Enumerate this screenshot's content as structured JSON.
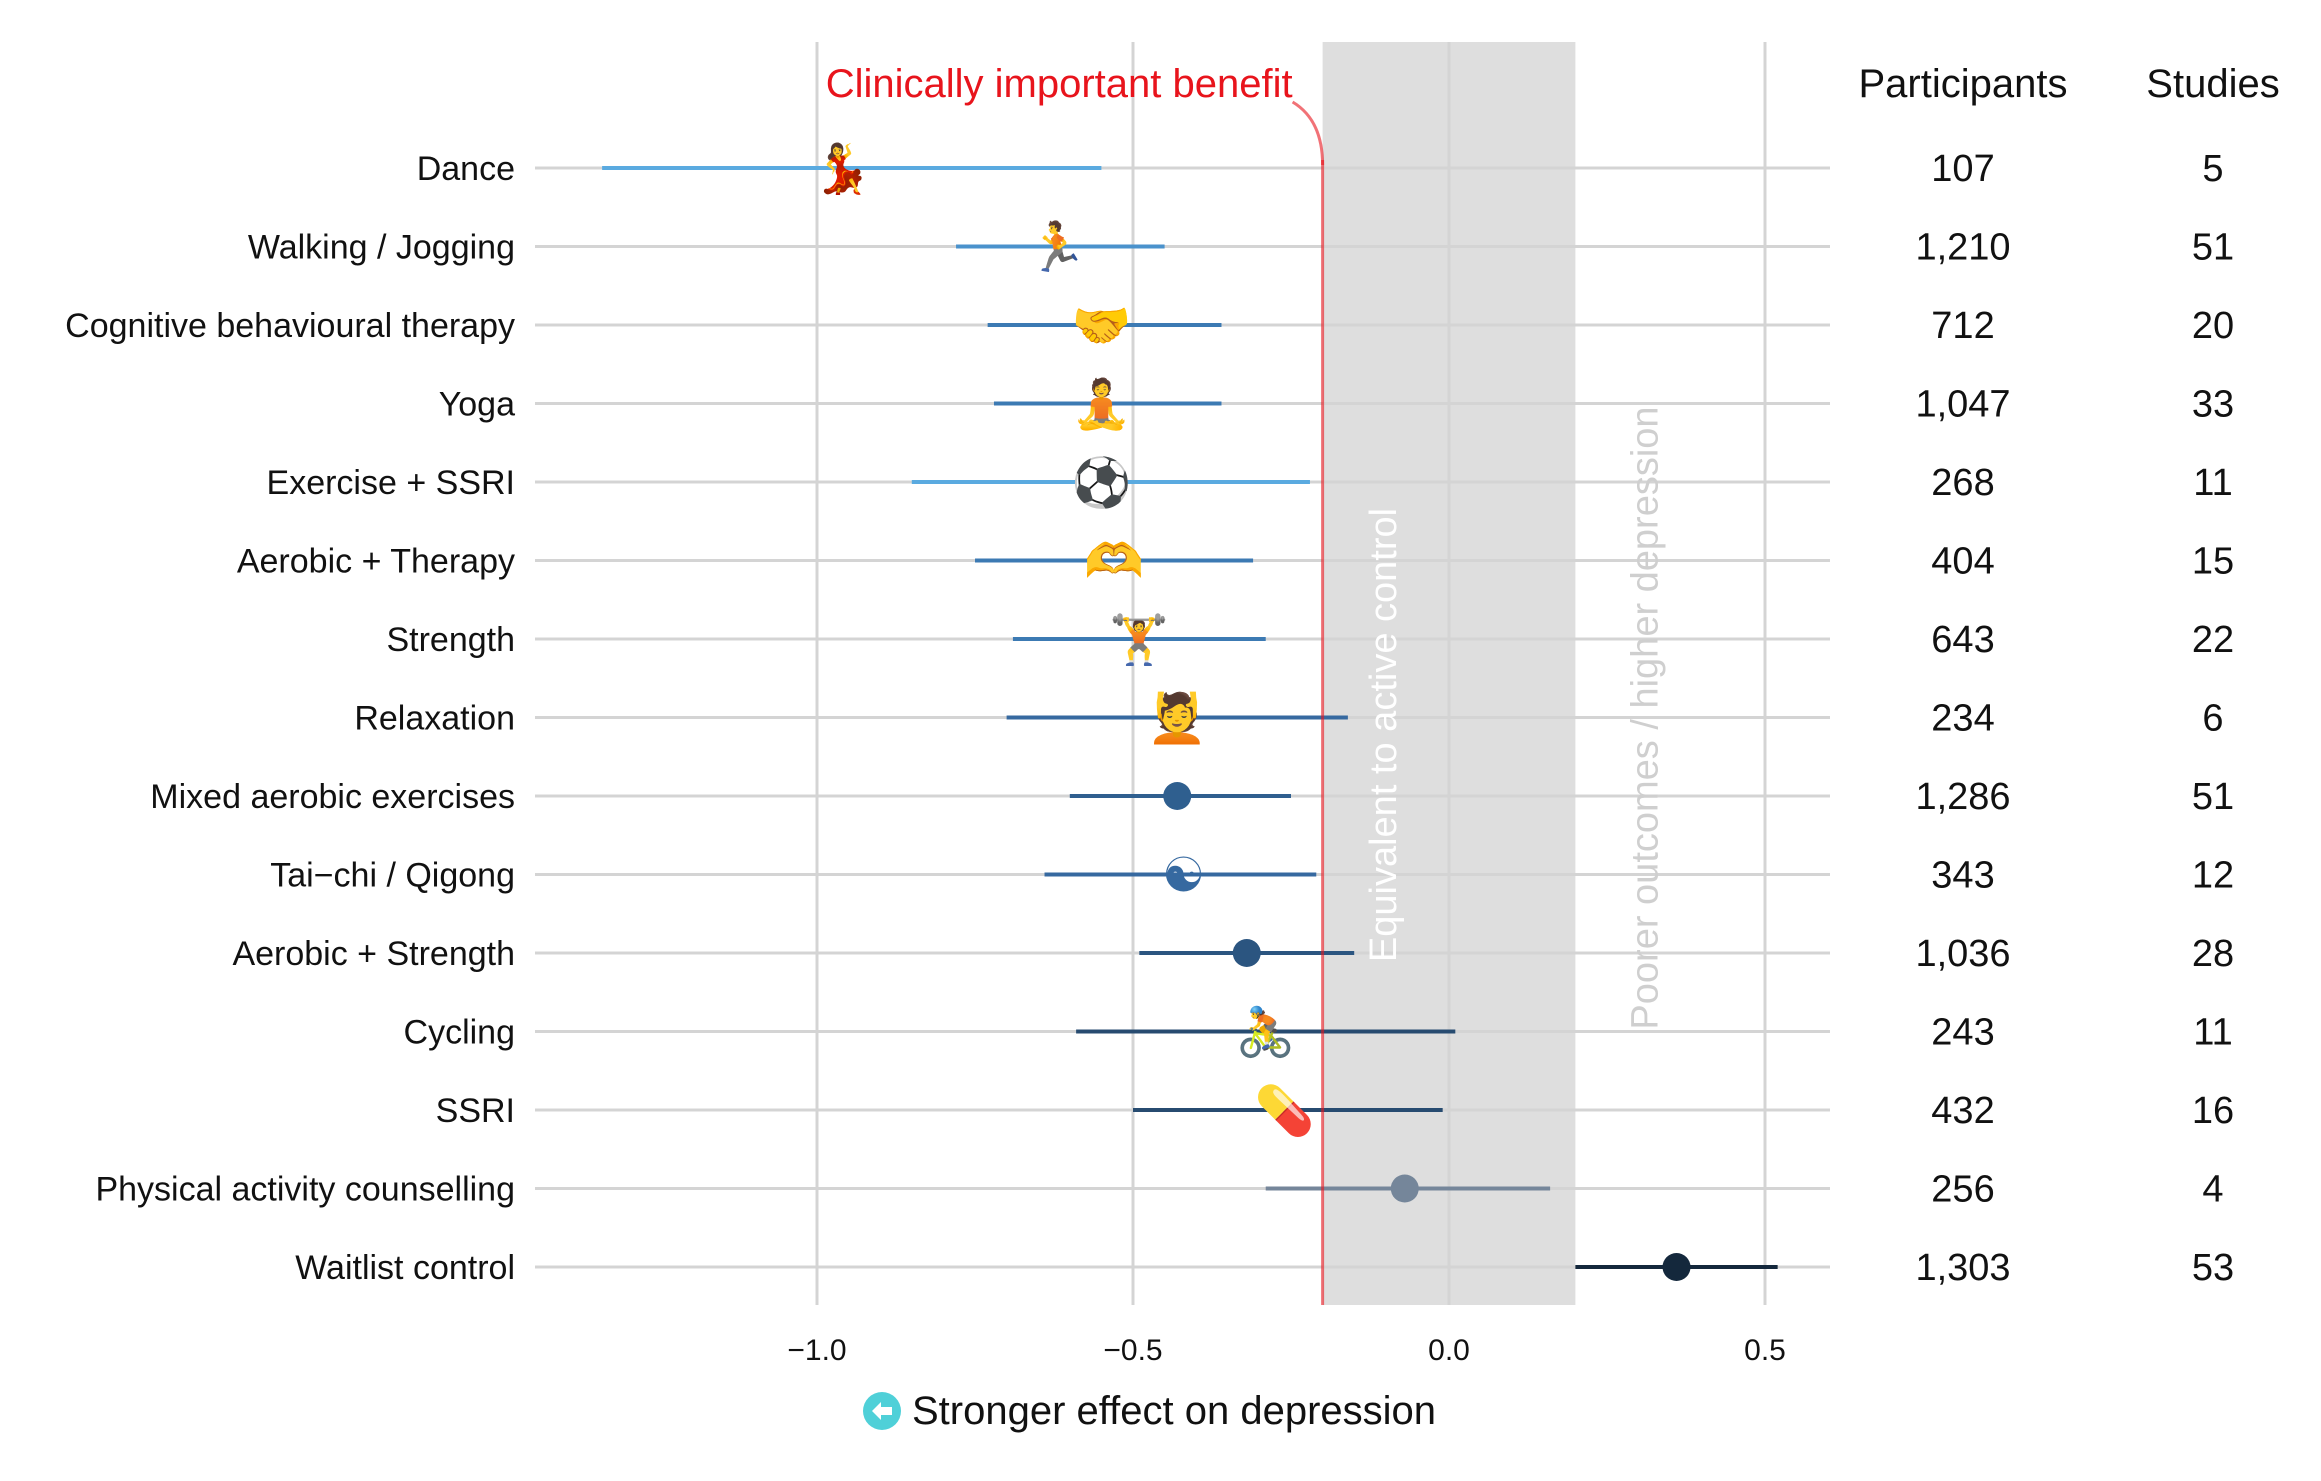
{
  "chart_data": {
    "type": "forest",
    "xaxis": {
      "xlim": [
        -1.4,
        0.6
      ],
      "ticks": [
        -1.0,
        -0.5,
        0.0,
        0.5
      ],
      "tick_labels": [
        "−1.0",
        "−0.5",
        "0.0",
        "0.5"
      ],
      "xlabel": "Stronger effect on depression",
      "xlabel_icon": "left-arrow-circle-icon"
    },
    "columns": {
      "participants": "Participants",
      "studies": "Studies"
    },
    "annotations": {
      "mcid_label": "Clinically important benefit",
      "mcid_value": -0.2,
      "equivalence_band": [
        -0.2,
        0.2
      ],
      "equivalence_label": "Equivalent to active control",
      "poorer_label": "Poorer outcomes / higher depression"
    },
    "colors": {
      "mcid": "#e8141c",
      "band": "#dedede",
      "grid": "#d4d4d4",
      "arrow_icon": "#4fd0d8"
    },
    "rows": [
      {
        "label": "Dance",
        "estimate": -0.96,
        "lower": -1.34,
        "upper": -0.55,
        "participants": "107",
        "studies": "5",
        "marker": "dance-icon",
        "glyph": "💃",
        "color": "#5aaae0"
      },
      {
        "label": "Walking / Jogging",
        "estimate": -0.62,
        "lower": -0.78,
        "upper": -0.45,
        "participants": "1,210",
        "studies": "51",
        "marker": "runner-icon",
        "glyph": "🏃",
        "color": "#4a92cc"
      },
      {
        "label": "Cognitive behavioural therapy",
        "estimate": -0.55,
        "lower": -0.73,
        "upper": -0.36,
        "participants": "712",
        "studies": "20",
        "marker": "handshake-icon",
        "glyph": "🤝",
        "color": "#3c7ab3"
      },
      {
        "label": "Yoga",
        "estimate": -0.55,
        "lower": -0.72,
        "upper": -0.36,
        "participants": "1,047",
        "studies": "33",
        "marker": "yoga-icon",
        "glyph": "🧘",
        "color": "#3c7ab3"
      },
      {
        "label": "Exercise + SSRI",
        "estimate": -0.55,
        "lower": -0.85,
        "upper": -0.22,
        "participants": "268",
        "studies": "11",
        "marker": "ball-and-pill-icon",
        "glyph": "⚽",
        "color": "#5aaae0"
      },
      {
        "label": "Aerobic + Therapy",
        "estimate": -0.53,
        "lower": -0.75,
        "upper": -0.31,
        "participants": "404",
        "studies": "15",
        "marker": "heart-hands-icon",
        "glyph": "🫶",
        "color": "#3c7ab3"
      },
      {
        "label": "Strength",
        "estimate": -0.49,
        "lower": -0.69,
        "upper": -0.29,
        "participants": "643",
        "studies": "22",
        "marker": "weightlifter-icon",
        "glyph": "🏋",
        "color": "#3c7ab3"
      },
      {
        "label": "Relaxation",
        "estimate": -0.43,
        "lower": -0.7,
        "upper": -0.16,
        "participants": "234",
        "studies": "6",
        "marker": "massage-icon",
        "glyph": "💆",
        "color": "#3669a0"
      },
      {
        "label": "Mixed aerobic exercises",
        "estimate": -0.43,
        "lower": -0.6,
        "upper": -0.25,
        "participants": "1,286",
        "studies": "51",
        "marker": "dot",
        "glyph": "",
        "color": "#2f5f8f"
      },
      {
        "label": "Tai−chi / Qigong",
        "estimate": -0.42,
        "lower": -0.64,
        "upper": -0.21,
        "participants": "343",
        "studies": "12",
        "marker": "yin-yang-icon",
        "glyph": "☯",
        "color": "#3669a0"
      },
      {
        "label": "Aerobic + Strength",
        "estimate": -0.32,
        "lower": -0.49,
        "upper": -0.15,
        "participants": "1,036",
        "studies": "28",
        "marker": "dot",
        "glyph": "",
        "color": "#2b5580"
      },
      {
        "label": "Cycling",
        "estimate": -0.29,
        "lower": -0.59,
        "upper": 0.01,
        "participants": "243",
        "studies": "11",
        "marker": "cyclist-icon",
        "glyph": "🚴",
        "color": "#274b70"
      },
      {
        "label": "SSRI",
        "estimate": -0.26,
        "lower": -0.5,
        "upper": -0.01,
        "participants": "432",
        "studies": "16",
        "marker": "pill-icon",
        "glyph": "💊",
        "color": "#274b70"
      },
      {
        "label": "Physical activity counselling",
        "estimate": -0.07,
        "lower": -0.29,
        "upper": 0.16,
        "participants": "256",
        "studies": "4",
        "marker": "dot",
        "glyph": "",
        "color": "#75869a"
      },
      {
        "label": "Waitlist control",
        "estimate": 0.36,
        "lower": 0.2,
        "upper": 0.52,
        "participants": "1,303",
        "studies": "53",
        "marker": "dot",
        "glyph": "",
        "color": "#14283c"
      }
    ]
  }
}
